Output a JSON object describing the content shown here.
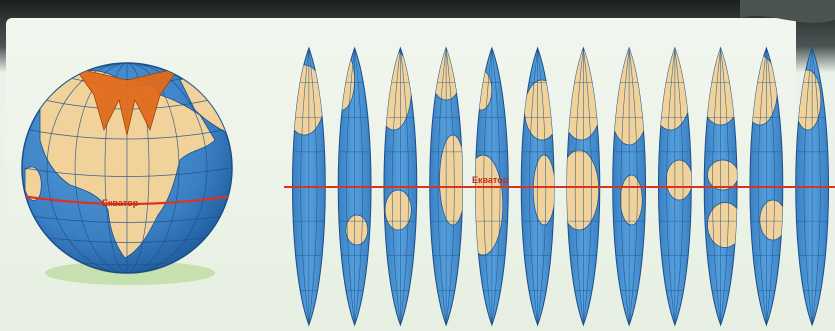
{
  "labels": {
    "equator_globe": "Екватор",
    "equator_gores": "Екватор"
  },
  "colors": {
    "ocean": "#3f86c9",
    "land": "#f0d29a",
    "grid": "#1b4f8a",
    "equator": "#d8341f",
    "cap": "#e06b1c",
    "page": "#eef4ea"
  },
  "gores": {
    "count": 12
  }
}
